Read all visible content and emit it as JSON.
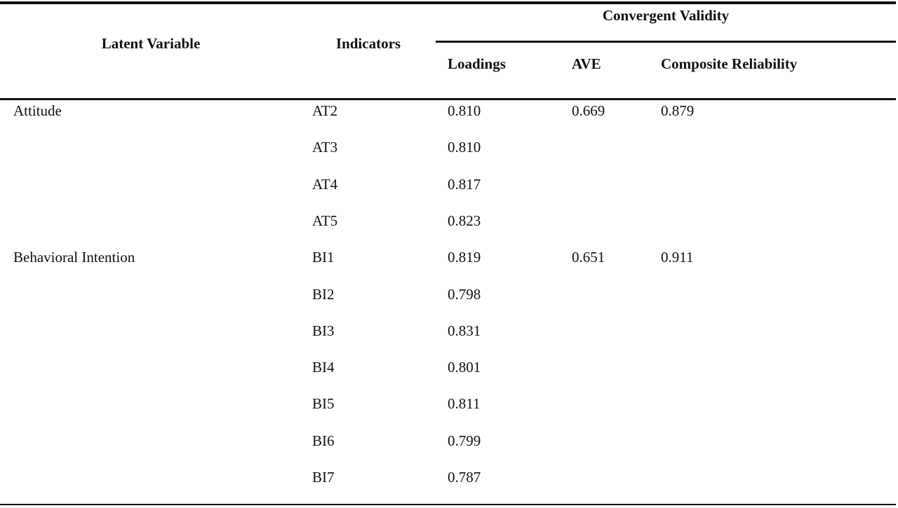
{
  "table": {
    "headers": {
      "latent_variable": "Latent Variable",
      "indicators": "Indicators",
      "convergent_validity": "Convergent Validity",
      "loadings": "Loadings",
      "ave": "AVE",
      "composite_reliability": "Composite Reliability"
    },
    "rows": [
      {
        "latent": "Attitude",
        "indicator": "AT2",
        "loading": "0.810",
        "ave": "0.669",
        "cr": "0.879"
      },
      {
        "latent": "",
        "indicator": "AT3",
        "loading": "0.810",
        "ave": "",
        "cr": ""
      },
      {
        "latent": "",
        "indicator": "AT4",
        "loading": "0.817",
        "ave": "",
        "cr": ""
      },
      {
        "latent": "",
        "indicator": "AT5",
        "loading": "0.823",
        "ave": "",
        "cr": ""
      },
      {
        "latent": "Behavioral Intention",
        "indicator": "BI1",
        "loading": "0.819",
        "ave": "0.651",
        "cr": "0.911"
      },
      {
        "latent": "",
        "indicator": "BI2",
        "loading": "0.798",
        "ave": "",
        "cr": ""
      },
      {
        "latent": "",
        "indicator": "BI3",
        "loading": "0.831",
        "ave": "",
        "cr": ""
      },
      {
        "latent": "",
        "indicator": "BI4",
        "loading": "0.801",
        "ave": "",
        "cr": ""
      },
      {
        "latent": "",
        "indicator": "BI5",
        "loading": "0.811",
        "ave": "",
        "cr": ""
      },
      {
        "latent": "",
        "indicator": "BI6",
        "loading": "0.799",
        "ave": "",
        "cr": ""
      },
      {
        "latent": "",
        "indicator": "BI7",
        "loading": "0.787",
        "ave": "",
        "cr": ""
      }
    ]
  }
}
